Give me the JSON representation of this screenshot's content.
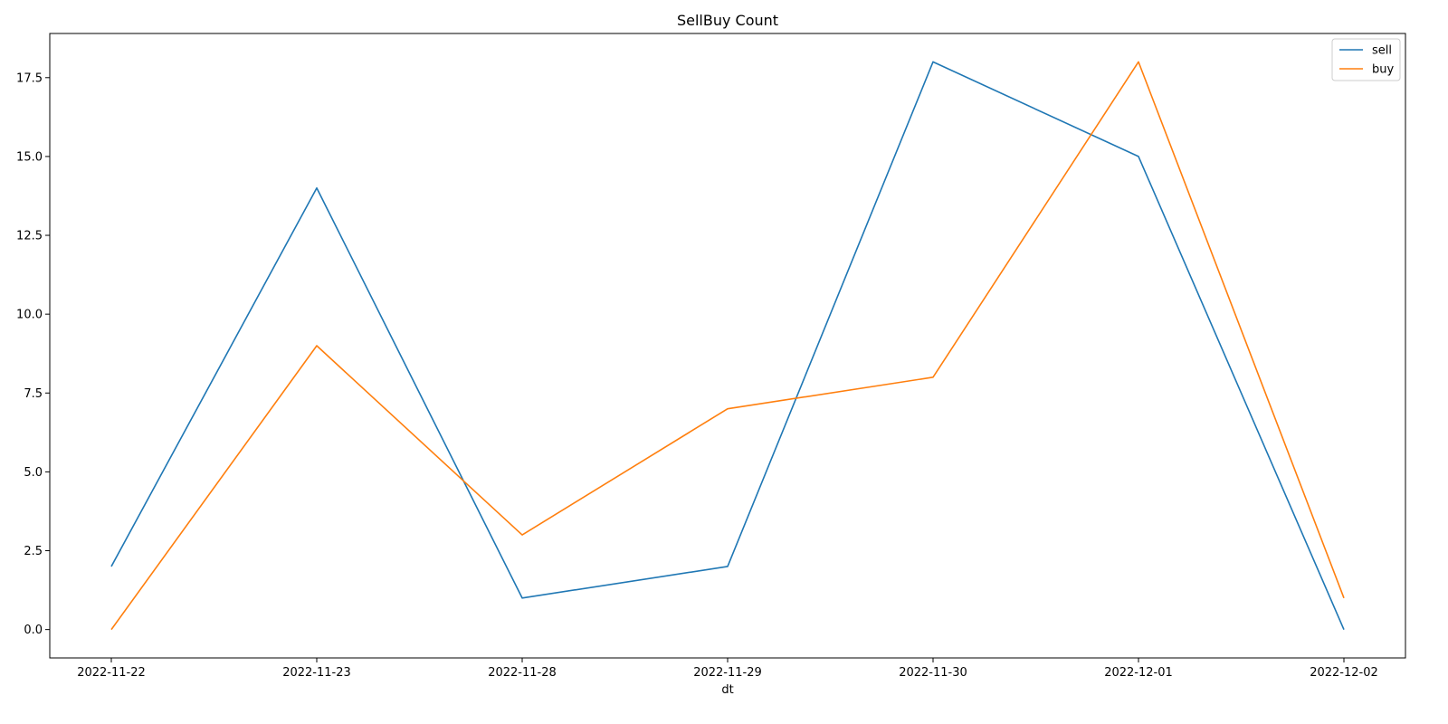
{
  "chart_data": {
    "type": "line",
    "title": "SellBuy Count",
    "xlabel": "dt",
    "ylabel": "",
    "categories": [
      "2022-11-22",
      "2022-11-23",
      "2022-11-28",
      "2022-11-29",
      "2022-11-30",
      "2022-12-01",
      "2022-12-02"
    ],
    "series": [
      {
        "name": "sell",
        "color": "#1f77b4",
        "values": [
          2,
          14,
          1,
          2,
          18,
          15,
          0
        ]
      },
      {
        "name": "buy",
        "color": "#ff7f0e",
        "values": [
          0,
          9,
          3,
          7,
          8,
          18,
          1
        ]
      }
    ],
    "ylim": [
      -0.9,
      18.9
    ],
    "yticks": [
      0.0,
      2.5,
      5.0,
      7.5,
      10.0,
      12.5,
      15.0,
      17.5
    ],
    "ytick_labels": [
      "0.0",
      "2.5",
      "5.0",
      "7.5",
      "10.0",
      "12.5",
      "15.0",
      "17.5"
    ],
    "grid": false,
    "legend_position": "top-right"
  }
}
